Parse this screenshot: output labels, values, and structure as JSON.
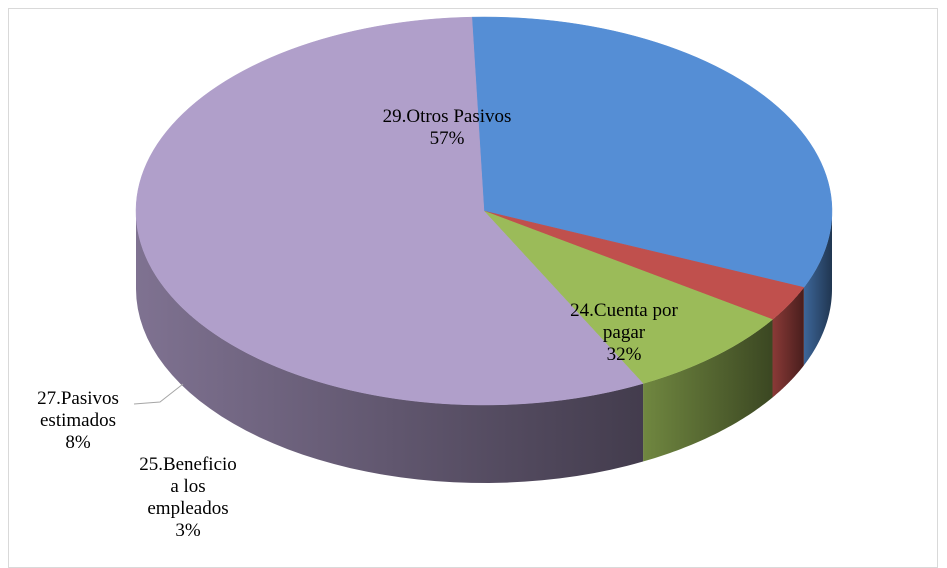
{
  "chart_data": {
    "type": "pie",
    "title": "",
    "slices": [
      {
        "label_lines": [
          "24.Cuenta por",
          "pagar"
        ],
        "pct_label": "32%",
        "value": 32,
        "color": "#558ed5"
      },
      {
        "label_lines": [
          "25.Beneficio",
          "a los",
          "empleados"
        ],
        "pct_label": "3%",
        "value": 3,
        "color": "#c0504d"
      },
      {
        "label_lines": [
          "27.Pasivos",
          "estimados"
        ],
        "pct_label": "8%",
        "value": 8,
        "color": "#9bbb59"
      },
      {
        "label_lines": [
          "29.Otros Pasivos"
        ],
        "pct_label": "57%",
        "value": 57,
        "color": "#b09fca"
      }
    ],
    "legend": "none",
    "style": "3d"
  }
}
